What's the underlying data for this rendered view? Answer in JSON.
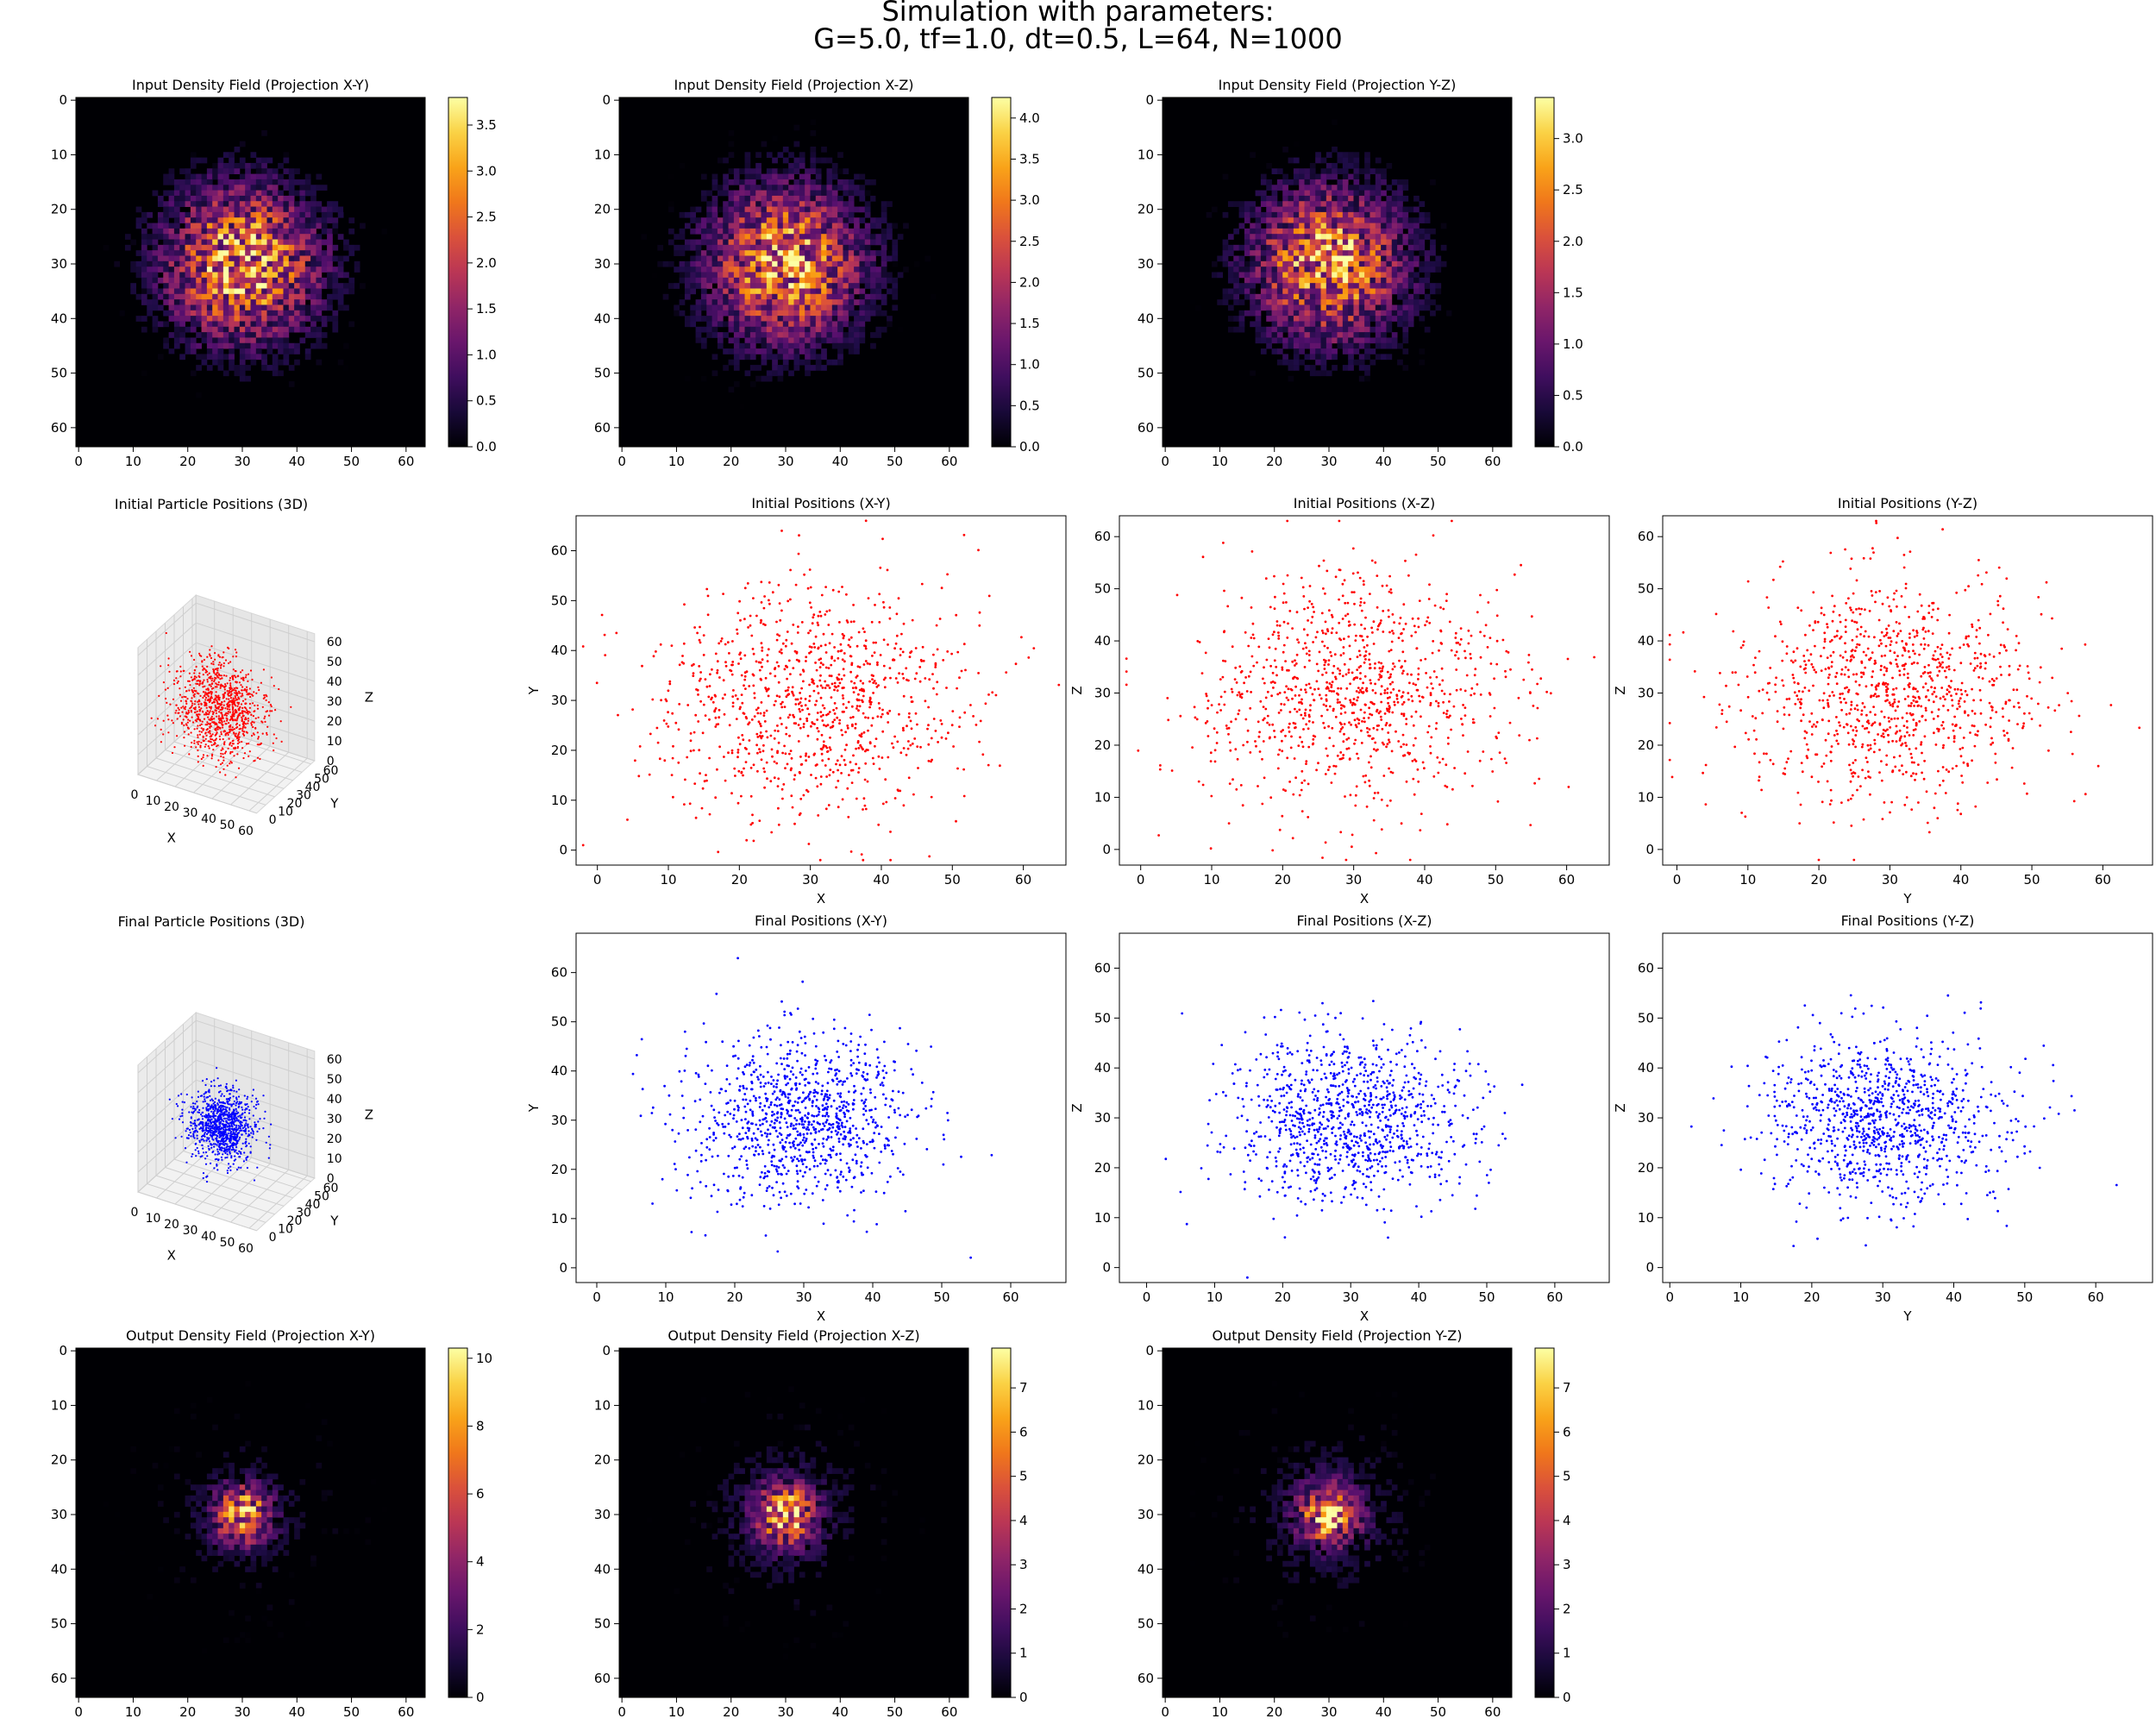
{
  "figure": {
    "title_line1": "Simulation with parameters:",
    "title_line2": "G=5.0, tf=1.0, dt=0.5, L=64, N=1000"
  },
  "colors": {
    "initial_points": "#ff0000",
    "final_points": "#0000ff",
    "colormap": "inferno"
  },
  "chart_data": [
    {
      "id": "in_xy",
      "type": "heatmap",
      "title": "Input Density Field (Projection X-Y)",
      "xlim": [
        0,
        63
      ],
      "ylim": [
        63,
        0
      ],
      "xticks": [
        0,
        10,
        20,
        30,
        40,
        50,
        60
      ],
      "yticks": [
        0,
        10,
        20,
        30,
        40,
        50,
        60
      ],
      "colorbar": {
        "min": 0,
        "max": 3.8,
        "ticks": [
          0,
          0.5,
          1.0,
          1.5,
          2.0,
          2.5,
          3.0,
          3.5
        ]
      },
      "grid": false
    },
    {
      "id": "in_xz",
      "type": "heatmap",
      "title": "Input Density Field (Projection X-Z)",
      "xlim": [
        0,
        63
      ],
      "ylim": [
        63,
        0
      ],
      "xticks": [
        0,
        10,
        20,
        30,
        40,
        50,
        60
      ],
      "yticks": [
        0,
        10,
        20,
        30,
        40,
        50,
        60
      ],
      "colorbar": {
        "min": 0,
        "max": 4.25,
        "ticks": [
          0,
          0.5,
          1.0,
          1.5,
          2.0,
          2.5,
          3.0,
          3.5,
          4.0
        ]
      },
      "grid": false
    },
    {
      "id": "in_yz",
      "type": "heatmap",
      "title": "Input Density Field (Projection Y-Z)",
      "xlim": [
        0,
        63
      ],
      "ylim": [
        63,
        0
      ],
      "xticks": [
        0,
        10,
        20,
        30,
        40,
        50,
        60
      ],
      "yticks": [
        0,
        10,
        20,
        30,
        40,
        50,
        60
      ],
      "colorbar": {
        "min": 0,
        "max": 3.4,
        "ticks": [
          0,
          0.5,
          1.0,
          1.5,
          2.0,
          2.5,
          3.0
        ]
      },
      "grid": false
    },
    {
      "id": "init_3d",
      "type": "scatter",
      "projection": "3d",
      "title": "Initial Particle Positions (3D)",
      "xlabel": "X",
      "ylabel": "Y",
      "zlabel": "Z",
      "ticks": [
        0,
        10,
        20,
        30,
        40,
        50,
        60
      ],
      "n_points": 1000,
      "center": [
        30,
        30,
        30
      ],
      "spread": 11,
      "color": "red"
    },
    {
      "id": "init_xy",
      "type": "scatter",
      "title": "Initial Positions (X-Y)",
      "xlabel": "X",
      "ylabel": "Y",
      "xlim": [
        -3,
        66
      ],
      "ylim": [
        -3,
        67
      ],
      "xticks": [
        0,
        10,
        20,
        30,
        40,
        50,
        60
      ],
      "yticks": [
        0,
        10,
        20,
        30,
        40,
        50,
        60
      ],
      "n_points": 1000,
      "center": [
        30,
        30
      ],
      "spread": 11,
      "color": "red"
    },
    {
      "id": "init_xz",
      "type": "scatter",
      "title": "Initial Positions (X-Z)",
      "xlabel": "X",
      "ylabel": "Z",
      "xlim": [
        -3,
        66
      ],
      "ylim": [
        -3,
        64
      ],
      "xticks": [
        0,
        10,
        20,
        30,
        40,
        50,
        60
      ],
      "yticks": [
        0,
        10,
        20,
        30,
        40,
        50,
        60
      ],
      "n_points": 1000,
      "center": [
        30,
        30
      ],
      "spread": 11,
      "color": "red"
    },
    {
      "id": "init_yz",
      "type": "scatter",
      "title": "Initial Positions (Y-Z)",
      "xlabel": "Y",
      "ylabel": "Z",
      "xlim": [
        -2,
        67
      ],
      "ylim": [
        -3,
        64
      ],
      "xticks": [
        0,
        10,
        20,
        30,
        40,
        50,
        60
      ],
      "yticks": [
        0,
        10,
        20,
        30,
        40,
        50,
        60
      ],
      "n_points": 1000,
      "center": [
        30,
        30
      ],
      "spread": 11,
      "color": "red"
    },
    {
      "id": "final_3d",
      "type": "scatter",
      "projection": "3d",
      "title": "Final Particle Positions (3D)",
      "xlabel": "X",
      "ylabel": "Y",
      "zlabel": "Z",
      "ticks": [
        0,
        10,
        20,
        30,
        40,
        50,
        60
      ],
      "n_points": 1000,
      "center": [
        30,
        30,
        30
      ],
      "spread": 8,
      "color": "blue"
    },
    {
      "id": "final_xy",
      "type": "scatter",
      "title": "Final Positions (X-Y)",
      "xlabel": "X",
      "ylabel": "Y",
      "xlim": [
        -3,
        68
      ],
      "ylim": [
        -3,
        68
      ],
      "xticks": [
        0,
        10,
        20,
        30,
        40,
        50,
        60
      ],
      "yticks": [
        0,
        10,
        20,
        30,
        40,
        50,
        60
      ],
      "n_points": 1000,
      "center": [
        30,
        30
      ],
      "spread": 8.5,
      "color": "blue"
    },
    {
      "id": "final_xz",
      "type": "scatter",
      "title": "Final Positions (X-Z)",
      "xlabel": "X",
      "ylabel": "Z",
      "xlim": [
        -4,
        68
      ],
      "ylim": [
        -3,
        67
      ],
      "xticks": [
        0,
        10,
        20,
        30,
        40,
        50,
        60
      ],
      "yticks": [
        0,
        10,
        20,
        30,
        40,
        50,
        60
      ],
      "n_points": 1000,
      "center": [
        30,
        30
      ],
      "spread": 8.5,
      "color": "blue"
    },
    {
      "id": "final_yz",
      "type": "scatter",
      "title": "Final Positions (Y-Z)",
      "xlabel": "Y",
      "ylabel": "Z",
      "xlim": [
        -1,
        68
      ],
      "ylim": [
        -3,
        67
      ],
      "xticks": [
        0,
        10,
        20,
        30,
        40,
        50,
        60
      ],
      "yticks": [
        0,
        10,
        20,
        30,
        40,
        50,
        60
      ],
      "n_points": 1000,
      "center": [
        30,
        30
      ],
      "spread": 8.5,
      "color": "blue"
    },
    {
      "id": "out_xy",
      "type": "heatmap",
      "title": "Output Density Field (Projection X-Y)",
      "xlim": [
        0,
        63
      ],
      "ylim": [
        63,
        0
      ],
      "xticks": [
        0,
        10,
        20,
        30,
        40,
        50,
        60
      ],
      "yticks": [
        0,
        10,
        20,
        30,
        40,
        50,
        60
      ],
      "colorbar": {
        "min": 0,
        "max": 10.3,
        "ticks": [
          0,
          2,
          4,
          6,
          8,
          10
        ]
      },
      "grid": false
    },
    {
      "id": "out_xz",
      "type": "heatmap",
      "title": "Output Density Field (Projection X-Z)",
      "xlim": [
        0,
        63
      ],
      "ylim": [
        63,
        0
      ],
      "xticks": [
        0,
        10,
        20,
        30,
        40,
        50,
        60
      ],
      "yticks": [
        0,
        10,
        20,
        30,
        40,
        50,
        60
      ],
      "colorbar": {
        "min": 0,
        "max": 7.9,
        "ticks": [
          0,
          1,
          2,
          3,
          4,
          5,
          6,
          7
        ]
      },
      "grid": false
    },
    {
      "id": "out_yz",
      "type": "heatmap",
      "title": "Output Density Field (Projection Y-Z)",
      "xlim": [
        0,
        63
      ],
      "ylim": [
        63,
        0
      ],
      "xticks": [
        0,
        10,
        20,
        30,
        40,
        50,
        60
      ],
      "yticks": [
        0,
        10,
        20,
        30,
        40,
        50,
        60
      ],
      "colorbar": {
        "min": 0,
        "max": 7.9,
        "ticks": [
          0,
          1,
          2,
          3,
          4,
          5,
          6,
          7
        ]
      },
      "grid": false
    }
  ]
}
